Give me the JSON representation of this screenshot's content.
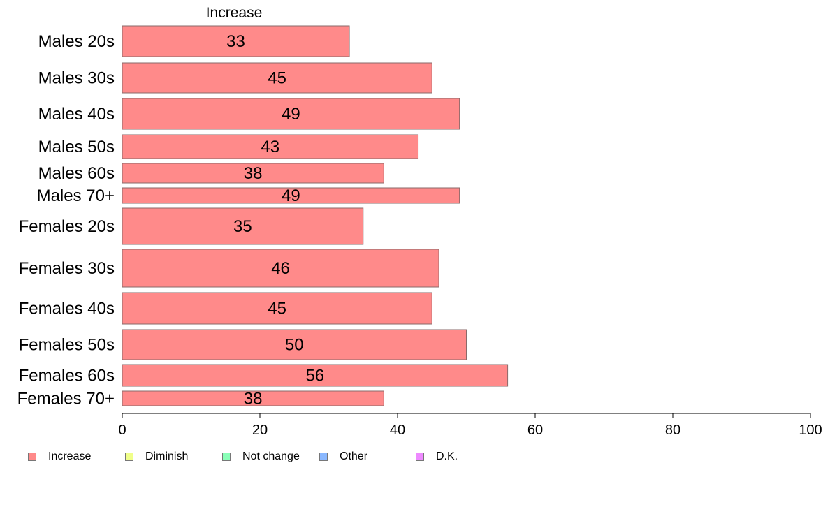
{
  "chart_data": {
    "type": "bar",
    "orientation": "horizontal",
    "title": "Increase",
    "categories": [
      "Males 20s",
      "Males 30s",
      "Males 40s",
      "Males 50s",
      "Males 60s",
      "Males 70+",
      "Females 20s",
      "Females 30s",
      "Females 40s",
      "Females 50s",
      "Females 60s",
      "Females 70+"
    ],
    "series": [
      {
        "name": "Increase",
        "values": [
          33,
          45,
          49,
          43,
          38,
          49,
          35,
          46,
          45,
          50,
          56,
          38
        ],
        "color": "#FF8A8A"
      }
    ],
    "xlim": [
      0,
      100
    ],
    "xticks": [
      0,
      20,
      40,
      60,
      80,
      100
    ],
    "xtick_labels": [
      "0",
      "20",
      "40",
      "60",
      "80",
      "100"
    ],
    "legend": {
      "placement": "bottom-left",
      "entries": [
        {
          "label": "Increase",
          "color": "#FF8A8A"
        },
        {
          "label": "Diminish",
          "color": "#F0FF8A"
        },
        {
          "label": "Not change",
          "color": "#8AFFB8"
        },
        {
          "label": "Other",
          "color": "#8AB8FF"
        },
        {
          "label": "D.K.",
          "color": "#EE8AFF"
        }
      ]
    },
    "grid": false
  }
}
